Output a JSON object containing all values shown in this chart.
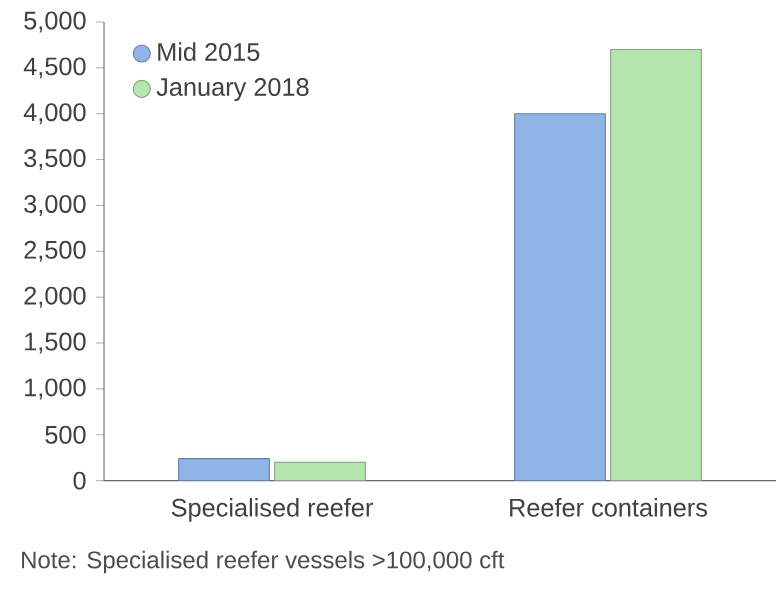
{
  "chart_data": {
    "type": "bar",
    "categories": [
      "Specialised reefer",
      "Reefer containers"
    ],
    "series": [
      {
        "name": "Mid 2015",
        "color": "#8fb5e6",
        "values": [
          240,
          4000
        ]
      },
      {
        "name": "January 2018",
        "color": "#b5e6b0",
        "values": [
          200,
          4700
        ]
      }
    ],
    "ylim": [
      0,
      5000
    ],
    "yticks": [
      {
        "value": 0,
        "label": "0"
      },
      {
        "value": 500,
        "label": "500"
      },
      {
        "value": 1000,
        "label": "1,000"
      },
      {
        "value": 1500,
        "label": "1,500"
      },
      {
        "value": 2000,
        "label": "2,000"
      },
      {
        "value": 2500,
        "label": "2,500"
      },
      {
        "value": 3000,
        "label": "3,000"
      },
      {
        "value": 3500,
        "label": "3,500"
      },
      {
        "value": 4000,
        "label": "4,000"
      },
      {
        "value": 4500,
        "label": "4,500"
      },
      {
        "value": 5000,
        "label": "5,000"
      }
    ],
    "legend": "top left",
    "annotations": [
      "Note: Specialised reefer vessels >100,000 cft"
    ]
  }
}
